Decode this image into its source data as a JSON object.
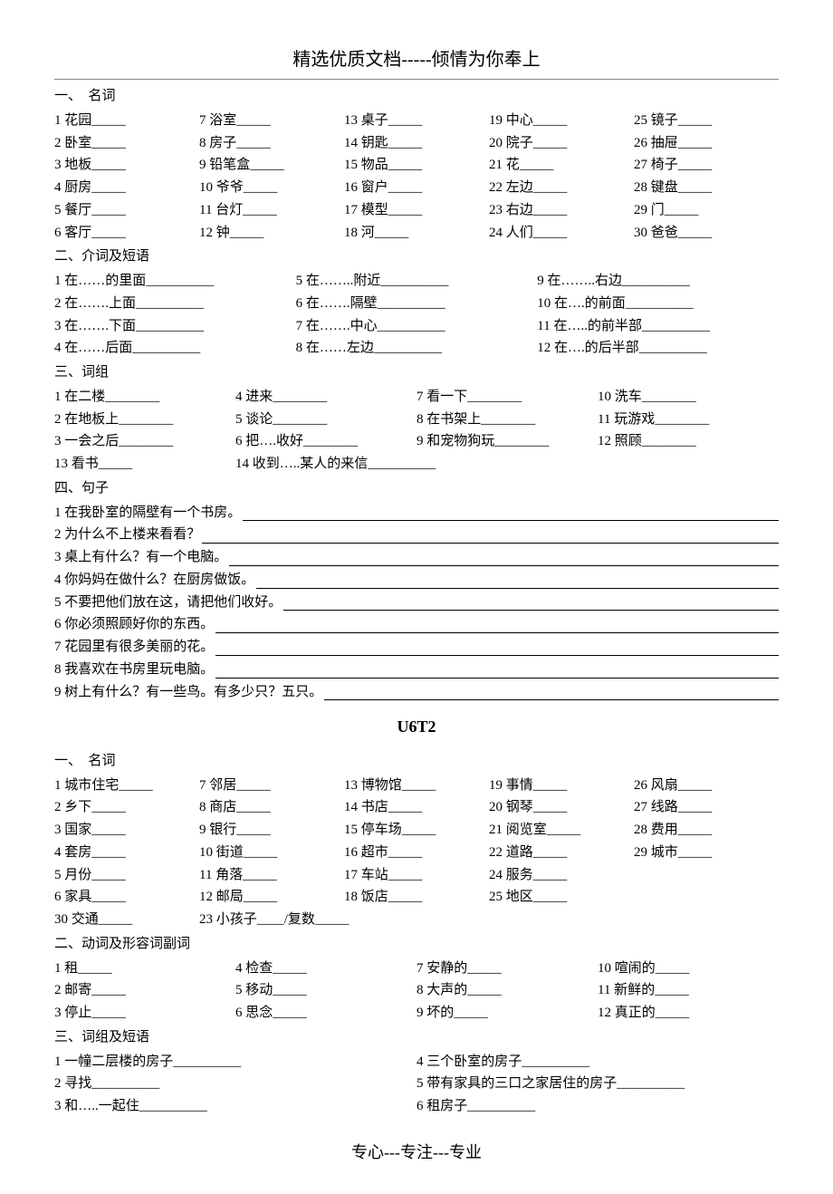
{
  "header": {
    "title_left": "精选优质文档",
    "title_dashes": "-----",
    "title_right": "倾情为你奉上"
  },
  "sec1": {
    "head": "一、　名词",
    "items": [
      "1 花园",
      "7 浴室",
      "13 桌子",
      "19 中心",
      "25 镜子",
      "2 卧室",
      "8 房子",
      "14 钥匙",
      "20 院子",
      "26 抽屉",
      "3 地板",
      "9 铅笔盒",
      "15 物品",
      "21 花",
      "27 椅子",
      "4 厨房",
      "10 爷爷",
      "16 窗户",
      "22 左边",
      "28 键盘",
      "5 餐厅",
      "11 台灯",
      "17 模型",
      "23 右边",
      "29  门",
      "6 客厅",
      "12 钟",
      "18 河",
      "24 人们",
      "30 爸爸"
    ]
  },
  "sec2": {
    "head": "二、介词及短语",
    "items": [
      "1 在……的里面",
      "5 在……..附近",
      "9 在……..右边",
      "2 在…….上面",
      "6 在…….隔壁",
      "10 在….的前面",
      "3 在…….下面",
      "7 在…….中心",
      "11 在…..的前半部",
      "4 在……后面",
      "  8 在……左边",
      "12 在….的后半部"
    ]
  },
  "sec3": {
    "head": "三、词组",
    "items": [
      "1 在二楼",
      "4 进来",
      "7 看一下",
      "10 洗车",
      "2 在地板上",
      "5 谈论",
      "8 在书架上",
      "11 玩游戏",
      "3 一会之后",
      "6 把….收好",
      "9 和宠物狗玩",
      "12 照顾"
    ],
    "last": [
      "13 看书",
      "14 收到…..某人的来信"
    ]
  },
  "sec4": {
    "head": "四、句子",
    "sents": [
      "1 在我卧室的隔壁有一个书房。",
      "2 为什么不上楼来看看？",
      "3 桌上有什么？有一个电脑。",
      "4 你妈妈在做什么？在厨房做饭。",
      "5 不要把他们放在这，请把他们收好。",
      "6 你必须照顾好你的东西。",
      "7 花园里有很多美丽的花。",
      "8 我喜欢在书房里玩电脑。",
      "9 树上有什么？有一些鸟。有多少只？五只。"
    ]
  },
  "u6t2_title": "U6T2",
  "sec5": {
    "head": "一、　名词",
    "items": [
      "1 城市住宅",
      "7 邻居",
      "13  博物馆",
      "19 事情",
      "26 风扇",
      "2 乡下",
      "8 商店",
      "14 书店",
      "20 钢琴",
      "27 线路",
      "3 国家",
      "9 银行",
      "15 停车场",
      "21 阅览室",
      "28 费用",
      "4 套房",
      "10 街道",
      "16 超市",
      "22 道路",
      "29 城市",
      "5 月份",
      "11 角落",
      "17 车站",
      "24 服务",
      "",
      "6 家具",
      "12 邮局",
      "18 饭店",
      "25 地区",
      ""
    ],
    "last_a": "30 交通",
    "last_b": "23 小孩子____/复数"
  },
  "sec6": {
    "head": "二、动词及形容词副词",
    "items": [
      "1 租",
      "4 检查",
      "7 安静的",
      "10 喧闹的",
      "2 邮寄",
      "5 移动",
      "8 大声的",
      "11 新鲜的",
      "3 停止",
      "6 思念",
      "9 坏的",
      "12 真正的"
    ]
  },
  "sec7": {
    "head": "三、词组及短语",
    "items": [
      "1 一幢二层楼的房子",
      "4 三个卧室的房子",
      "2 寻找",
      "5 带有家具的三口之家居住的房子",
      "3 和…..一起住",
      "6 租房子"
    ]
  },
  "footer": {
    "a": "专心",
    "d": "---",
    "b": "专注",
    "c": "专业"
  }
}
